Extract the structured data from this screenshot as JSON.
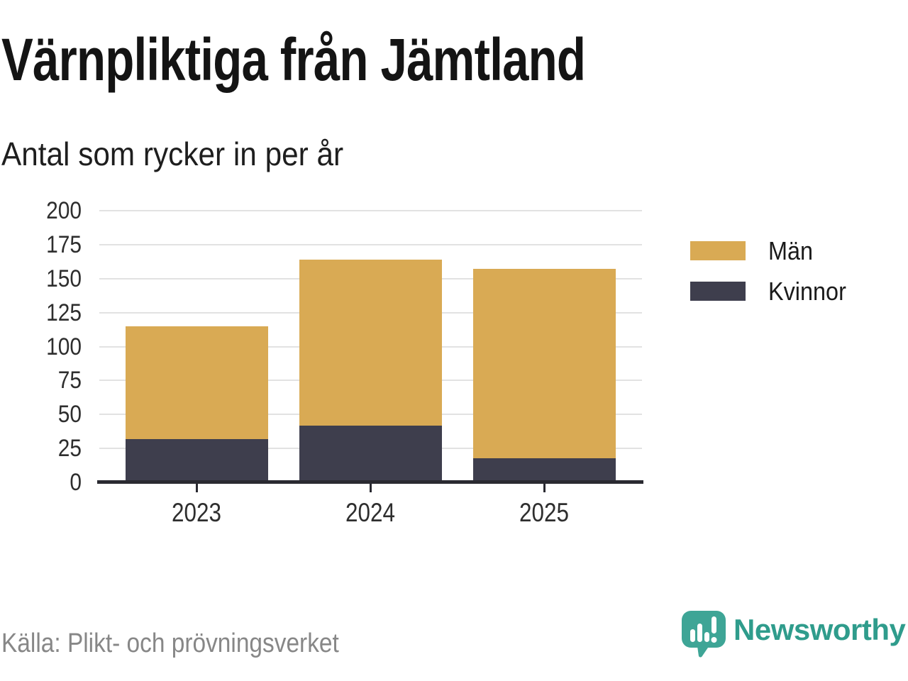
{
  "header": {
    "title": "Värnpliktiga från Jämtland",
    "subtitle": "Antal som rycker in per år"
  },
  "chart_data": {
    "type": "bar",
    "stacked": true,
    "categories": [
      "2023",
      "2024",
      "2025"
    ],
    "series": [
      {
        "name": "Män",
        "color": "#d9aa54",
        "values": [
          83,
          122,
          139
        ]
      },
      {
        "name": "Kvinnor",
        "color": "#3e3e4d",
        "values": [
          32,
          42,
          18
        ]
      }
    ],
    "totals": [
      115,
      164,
      157
    ],
    "title": "Värnpliktiga från Jämtland",
    "subtitle": "Antal som rycker in per år",
    "xlabel": "",
    "ylabel": "",
    "ylim": [
      0,
      200
    ],
    "yticks": [
      0,
      25,
      50,
      75,
      100,
      125,
      150,
      175,
      200
    ],
    "grid": true,
    "gridline_color": "#e2e2e2",
    "axis_color": "#2a2a31",
    "legend_position": "right"
  },
  "legend": {
    "items": [
      {
        "label": "Män",
        "color": "#d9aa54"
      },
      {
        "label": "Kvinnor",
        "color": "#3e3e4d"
      }
    ]
  },
  "footer": {
    "source": "Källa: Plikt- och prövningsverket",
    "brand": "Newsworthy",
    "brand_color": "#2f9c8c"
  },
  "icons": {
    "logo": "speech-bubble-bar-chart-icon"
  }
}
